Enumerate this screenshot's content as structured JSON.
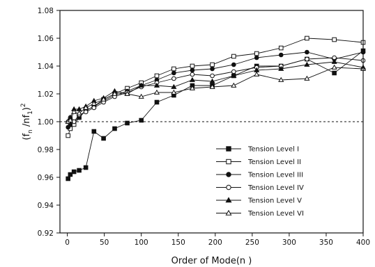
{
  "chart_data": {
    "type": "line",
    "xlabel": "Order of Mode(n )",
    "ylabel": "(f /nf )",
    "ylabel_subscripts": [
      "n",
      "1"
    ],
    "ylabel_superscript": "2",
    "xlim": [
      -10,
      400
    ],
    "ylim": [
      0.92,
      1.08
    ],
    "xticks": [
      0,
      50,
      100,
      150,
      200,
      250,
      300,
      350,
      400
    ],
    "yticks": [
      0.92,
      0.94,
      0.96,
      0.98,
      1.0,
      1.02,
      1.04,
      1.06,
      1.08
    ],
    "ytick_labels": [
      "0.92",
      "0.94",
      "0.96",
      "0.98",
      "1.00",
      "1.02",
      "1.04",
      "1.06",
      "1.08"
    ],
    "reference_line": {
      "y": 1.0,
      "style": "dashed"
    },
    "legend_position": "lower-right",
    "series": [
      {
        "name": "Tension Level I",
        "marker": "square-filled",
        "x": [
          1,
          4,
          9,
          16,
          25,
          36,
          49,
          64,
          81,
          100,
          121,
          144,
          169,
          196,
          225,
          256,
          289,
          324,
          361,
          400
        ],
        "y": [
          0.959,
          0.962,
          0.964,
          0.965,
          0.967,
          0.993,
          0.988,
          0.995,
          0.999,
          1.001,
          1.014,
          1.019,
          1.026,
          1.026,
          1.033,
          1.04,
          1.04,
          1.045,
          1.035,
          1.051
        ]
      },
      {
        "name": "Tension Level II",
        "marker": "square-open",
        "x": [
          1,
          4,
          9,
          16,
          25,
          36,
          49,
          64,
          81,
          100,
          121,
          144,
          169,
          196,
          225,
          256,
          289,
          324,
          361,
          400
        ],
        "y": [
          0.99,
          0.995,
          0.998,
          1.003,
          1.008,
          1.011,
          1.016,
          1.02,
          1.024,
          1.028,
          1.033,
          1.038,
          1.04,
          1.041,
          1.047,
          1.049,
          1.053,
          1.06,
          1.059,
          1.057
        ]
      },
      {
        "name": "Tension Level III",
        "marker": "circle-filled",
        "x": [
          1,
          4,
          9,
          16,
          25,
          36,
          49,
          64,
          81,
          100,
          121,
          144,
          169,
          196,
          225,
          256,
          289,
          324,
          361,
          400
        ],
        "y": [
          0.996,
          0.998,
          1.0,
          1.003,
          1.008,
          1.011,
          1.015,
          1.019,
          1.022,
          1.026,
          1.03,
          1.035,
          1.037,
          1.038,
          1.041,
          1.046,
          1.048,
          1.05,
          1.045,
          1.05
        ]
      },
      {
        "name": "Tension Level IV",
        "marker": "circle-open",
        "x": [
          1,
          4,
          9,
          16,
          25,
          36,
          49,
          64,
          81,
          100,
          121,
          144,
          169,
          196,
          225,
          256,
          289,
          324,
          361,
          400
        ],
        "y": [
          1.0,
          1.003,
          1.0,
          1.005,
          1.007,
          1.01,
          1.014,
          1.018,
          1.021,
          1.025,
          1.028,
          1.031,
          1.034,
          1.033,
          1.036,
          1.039,
          1.04,
          1.045,
          1.046,
          1.044
        ]
      },
      {
        "name": "Tension Level V",
        "marker": "triangle-filled",
        "x": [
          1,
          4,
          9,
          16,
          25,
          36,
          49,
          64,
          81,
          100,
          121,
          144,
          169,
          196,
          225,
          256,
          289,
          324,
          361,
          400
        ],
        "y": [
          1.0,
          1.003,
          1.009,
          1.009,
          1.011,
          1.015,
          1.017,
          1.022,
          1.02,
          1.026,
          1.026,
          1.025,
          1.03,
          1.029,
          1.033,
          1.037,
          1.038,
          1.041,
          1.043,
          1.039
        ]
      },
      {
        "name": "Tension Level VI",
        "marker": "triangle-open",
        "x": [
          1,
          4,
          9,
          16,
          25,
          36,
          49,
          64,
          81,
          100,
          121,
          144,
          169,
          196,
          225,
          256,
          289,
          324,
          361,
          400
        ],
        "y": [
          1.0,
          1.001,
          1.007,
          1.006,
          1.01,
          1.013,
          1.016,
          1.02,
          1.02,
          1.018,
          1.021,
          1.021,
          1.024,
          1.025,
          1.026,
          1.034,
          1.03,
          1.031,
          1.039,
          1.038
        ]
      }
    ]
  }
}
